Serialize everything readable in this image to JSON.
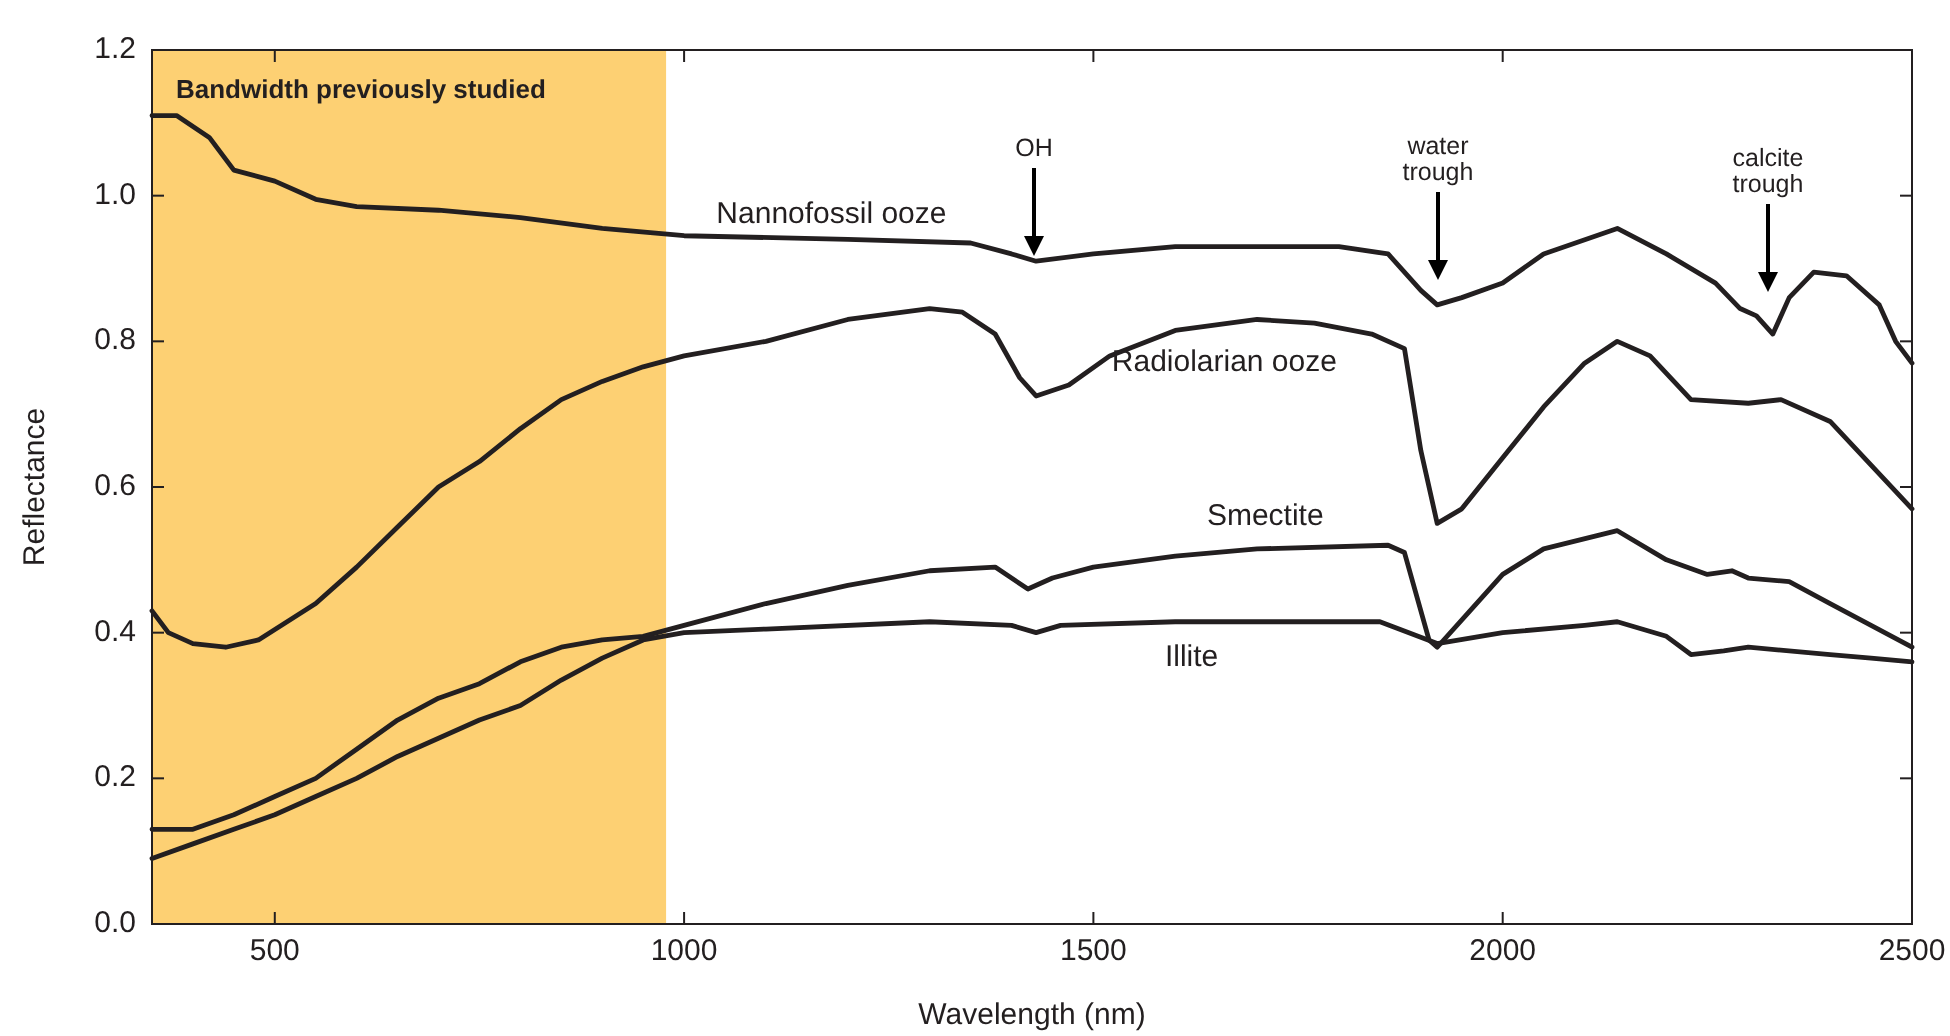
{
  "chart_data": {
    "type": "line",
    "xlabel": "Wavelength (nm)",
    "ylabel": "Reflectance",
    "xlim": [
      350,
      2500
    ],
    "ylim": [
      0,
      1.2
    ],
    "xticks": [
      500,
      1000,
      1500,
      2000,
      2500
    ],
    "yticks": [
      {
        "value": 0,
        "label": "0.0"
      },
      {
        "value": 0.2,
        "label": "0.2"
      },
      {
        "value": 0.4,
        "label": "0.4"
      },
      {
        "value": 0.6,
        "label": "0.6"
      },
      {
        "value": 0.8,
        "label": "0.8"
      },
      {
        "value": 1,
        "label": "1.0"
      },
      {
        "value": 1.2,
        "label": "1.2"
      }
    ],
    "grid": false,
    "legend": false,
    "marker": "none",
    "line_style": "solid",
    "bands": [
      {
        "axis": "x",
        "from": 350,
        "to": 978,
        "label": "Bandwidth previously studied",
        "color": "#fdd073"
      }
    ],
    "annotations": [
      "OH",
      "water trough",
      "calcite trough"
    ],
    "series": [
      {
        "name": "Nannofossil ooze",
        "color": "#231f20",
        "x": [
          350,
          380,
          420,
          450,
          500,
          550,
          600,
          700,
          800,
          900,
          1000,
          1200,
          1350,
          1400,
          1430,
          1500,
          1600,
          1800,
          1860,
          1900,
          1920,
          1950,
          2000,
          2050,
          2140,
          2200,
          2260,
          2290,
          2310,
          2330,
          2350,
          2380,
          2420,
          2460,
          2480,
          2500
        ],
        "values": [
          1.11,
          1.11,
          1.08,
          1.035,
          1.02,
          0.995,
          0.985,
          0.98,
          0.97,
          0.955,
          0.945,
          0.94,
          0.935,
          0.92,
          0.91,
          0.92,
          0.93,
          0.93,
          0.92,
          0.87,
          0.85,
          0.86,
          0.88,
          0.92,
          0.955,
          0.92,
          0.88,
          0.845,
          0.835,
          0.81,
          0.86,
          0.895,
          0.89,
          0.85,
          0.8,
          0.77
        ]
      },
      {
        "name": "Radiolarian ooze",
        "color": "#231f20",
        "x": [
          350,
          370,
          400,
          440,
          480,
          550,
          600,
          650,
          700,
          750,
          800,
          850,
          900,
          950,
          1000,
          1100,
          1200,
          1300,
          1340,
          1380,
          1410,
          1430,
          1470,
          1520,
          1600,
          1700,
          1770,
          1840,
          1880,
          1900,
          1920,
          1950,
          2000,
          2050,
          2100,
          2140,
          2180,
          2230,
          2300,
          2340,
          2400,
          2450,
          2500
        ],
        "values": [
          0.43,
          0.4,
          0.385,
          0.38,
          0.39,
          0.44,
          0.49,
          0.545,
          0.6,
          0.635,
          0.68,
          0.72,
          0.745,
          0.765,
          0.78,
          0.8,
          0.83,
          0.845,
          0.84,
          0.81,
          0.75,
          0.725,
          0.74,
          0.78,
          0.815,
          0.83,
          0.825,
          0.81,
          0.79,
          0.65,
          0.55,
          0.57,
          0.64,
          0.71,
          0.77,
          0.8,
          0.78,
          0.72,
          0.715,
          0.72,
          0.69,
          0.63,
          0.57
        ]
      },
      {
        "name": "Smectite",
        "color": "#231f20",
        "x": [
          350,
          400,
          450,
          500,
          550,
          600,
          650,
          700,
          750,
          800,
          850,
          900,
          950,
          1000,
          1100,
          1200,
          1300,
          1380,
          1420,
          1450,
          1500,
          1600,
          1700,
          1860,
          1880,
          1910,
          1920,
          1960,
          2000,
          2050,
          2140,
          2200,
          2250,
          2280,
          2300,
          2350,
          2400,
          2450,
          2500
        ],
        "values": [
          0.13,
          0.13,
          0.15,
          0.175,
          0.2,
          0.24,
          0.28,
          0.31,
          0.33,
          0.36,
          0.38,
          0.39,
          0.395,
          0.41,
          0.44,
          0.465,
          0.485,
          0.49,
          0.46,
          0.475,
          0.49,
          0.505,
          0.515,
          0.52,
          0.51,
          0.39,
          0.38,
          0.43,
          0.48,
          0.515,
          0.54,
          0.5,
          0.48,
          0.485,
          0.475,
          0.47,
          0.44,
          0.41,
          0.38
        ]
      },
      {
        "name": "Illite",
        "color": "#231f20",
        "x": [
          350,
          400,
          450,
          500,
          550,
          600,
          650,
          700,
          750,
          800,
          850,
          900,
          950,
          1000,
          1100,
          1300,
          1400,
          1430,
          1460,
          1600,
          1850,
          1920,
          2000,
          2100,
          2140,
          2200,
          2230,
          2270,
          2300,
          2400,
          2450,
          2500
        ],
        "values": [
          0.09,
          0.11,
          0.13,
          0.15,
          0.175,
          0.2,
          0.23,
          0.255,
          0.28,
          0.3,
          0.335,
          0.365,
          0.39,
          0.4,
          0.405,
          0.415,
          0.41,
          0.4,
          0.41,
          0.415,
          0.415,
          0.385,
          0.4,
          0.41,
          0.415,
          0.395,
          0.37,
          0.375,
          0.38,
          0.37,
          0.365,
          0.36
        ]
      }
    ]
  }
}
